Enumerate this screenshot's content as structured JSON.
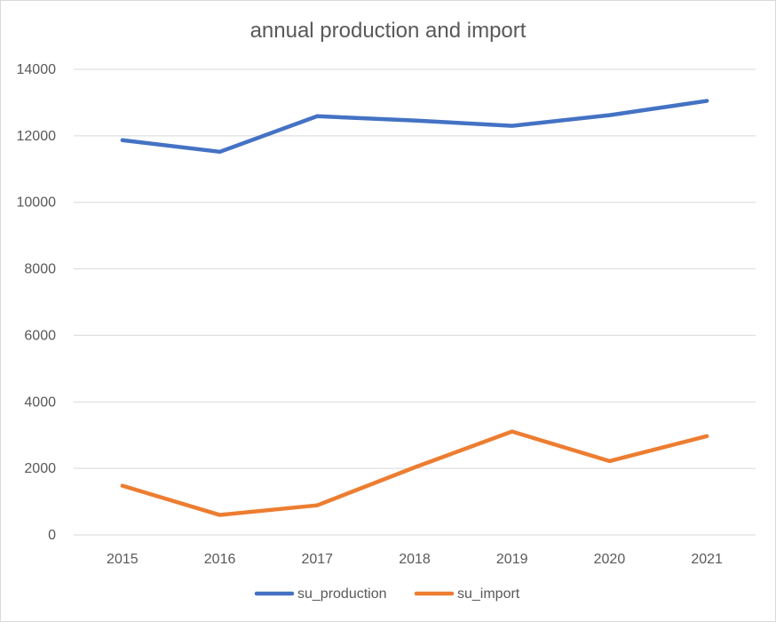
{
  "chart_data": {
    "type": "line",
    "title": "annual production and import",
    "xlabel": "",
    "ylabel": "",
    "categories": [
      "2015",
      "2016",
      "2017",
      "2018",
      "2019",
      "2020",
      "2021"
    ],
    "ylim": [
      0,
      14000
    ],
    "yticks": [
      0,
      2000,
      4000,
      6000,
      8000,
      10000,
      12000,
      14000
    ],
    "grid": true,
    "legend_position": "bottom",
    "series": [
      {
        "name": "su_production",
        "color": "#4472C4",
        "values": [
          11870,
          11520,
          12590,
          12460,
          12300,
          12620,
          13050
        ]
      },
      {
        "name": "su_import",
        "color": "#ED7D31",
        "values": [
          1480,
          600,
          890,
          2030,
          3110,
          2220,
          2970
        ]
      }
    ]
  }
}
